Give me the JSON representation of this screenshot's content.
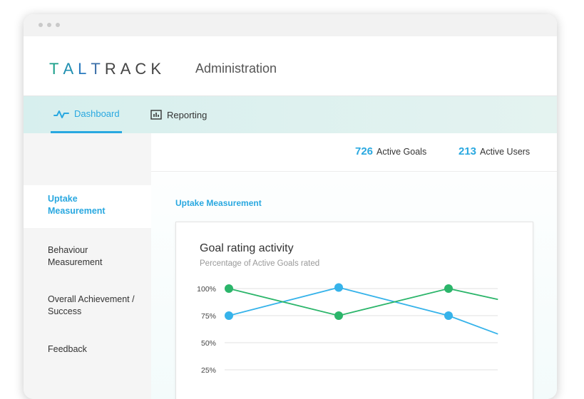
{
  "brand": {
    "logo_letters": [
      "T",
      "A",
      "L",
      "T",
      "R",
      "A",
      "C",
      "K"
    ],
    "logo_colors": [
      "#1a9f8a",
      "#1f8fb0",
      "#2a7ac0",
      "#3b6fa8",
      "#444444",
      "#444444",
      "#444444",
      "#444444"
    ],
    "section_name": "Administration"
  },
  "nav": {
    "tabs": [
      {
        "label": "Dashboard",
        "icon": "pulse-icon",
        "active": true
      },
      {
        "label": "Reporting",
        "icon": "bar-chart-icon",
        "active": false
      }
    ]
  },
  "sidebar": {
    "items": [
      {
        "label": "Uptake Measurement",
        "active": true
      },
      {
        "label": "Behaviour Measurement",
        "active": false
      },
      {
        "label": "Overall Achievement / Success",
        "active": false
      },
      {
        "label": "Feedback",
        "active": false
      }
    ]
  },
  "stats": {
    "goals_value": "726",
    "goals_label": "Active Goals",
    "users_value": "213",
    "users_label": "Active Users"
  },
  "main": {
    "section_title": "Uptake Measurement"
  },
  "card": {
    "title": "Goal rating activity",
    "subtitle": "Percentage of Active Goals rated"
  },
  "colors": {
    "accent": "#29a8e0",
    "series_blue": "#36b3ea",
    "series_green": "#2bb56a"
  },
  "chart_data": {
    "type": "line",
    "title": "Goal rating activity",
    "subtitle": "Percentage of Active Goals rated",
    "y_ticks": [
      "100%",
      "75%",
      "50%",
      "25%"
    ],
    "y_tick_values": [
      100,
      75,
      50,
      25
    ],
    "grid": true,
    "series": [
      {
        "color": "#36b3ea",
        "points": [
          [
            0,
            75
          ],
          [
            1,
            101
          ],
          [
            2,
            75
          ],
          [
            2.45,
            58
          ]
        ],
        "markers": [
          0,
          1,
          2
        ]
      },
      {
        "color": "#2bb56a",
        "points": [
          [
            0,
            100
          ],
          [
            1,
            75
          ],
          [
            2,
            100
          ],
          [
            2.45,
            90
          ]
        ],
        "markers": [
          0,
          1,
          2
        ]
      }
    ]
  }
}
